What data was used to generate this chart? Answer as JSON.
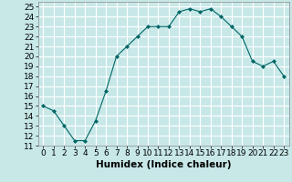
{
  "x": [
    0,
    1,
    2,
    3,
    4,
    5,
    6,
    7,
    8,
    9,
    10,
    11,
    12,
    13,
    14,
    15,
    16,
    17,
    18,
    19,
    20,
    21,
    22,
    23
  ],
  "y": [
    15.0,
    14.5,
    13.0,
    11.5,
    11.5,
    13.5,
    16.5,
    20.0,
    21.0,
    22.0,
    23.0,
    23.0,
    23.0,
    24.5,
    24.8,
    24.5,
    24.8,
    24.0,
    23.0,
    22.0,
    19.5,
    19.0,
    19.5,
    18.0
  ],
  "line_color": "#006666",
  "marker": "D",
  "marker_size": 2,
  "bg_color": "#c8e8e8",
  "grid_color": "#ffffff",
  "grid_minor_color": "#ddeeff",
  "xlabel": "Humidex (Indice chaleur)",
  "xlabel_fontsize": 7.5,
  "xlim": [
    -0.5,
    23.5
  ],
  "ylim": [
    11,
    25.5
  ],
  "yticks": [
    11,
    12,
    13,
    14,
    15,
    16,
    17,
    18,
    19,
    20,
    21,
    22,
    23,
    24,
    25
  ],
  "xticks": [
    0,
    1,
    2,
    3,
    4,
    5,
    6,
    7,
    8,
    9,
    10,
    11,
    12,
    13,
    14,
    15,
    16,
    17,
    18,
    19,
    20,
    21,
    22,
    23
  ],
  "tick_fontsize": 6.5
}
